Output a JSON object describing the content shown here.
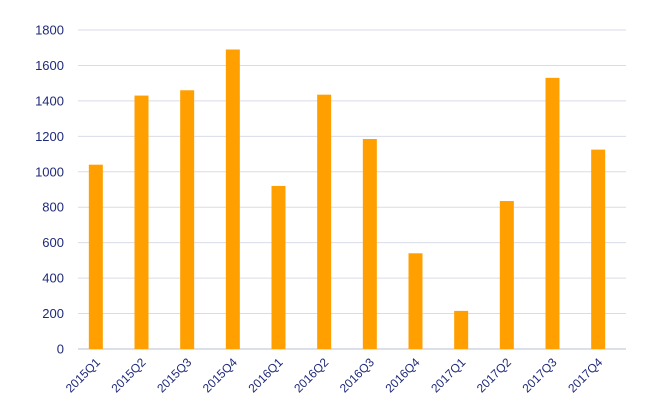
{
  "chart_data": {
    "type": "bar",
    "title": "",
    "xlabel": "",
    "ylabel": "",
    "categories": [
      "2015Q1",
      "2015Q2",
      "2015Q3",
      "2015Q4",
      "2016Q1",
      "2016Q2",
      "2016Q3",
      "2016Q4",
      "2017Q1",
      "2017Q2",
      "2017Q3",
      "2017Q4"
    ],
    "series": [
      {
        "values": [
          1040,
          1430,
          1460,
          1690,
          920,
          1435,
          1185,
          540,
          215,
          835,
          1530,
          1125
        ]
      }
    ],
    "ylim": [
      0,
      1800
    ],
    "yticks": [
      "0",
      "200",
      "400",
      "600",
      "800",
      "1000",
      "1200",
      "1400",
      "1600",
      "1800"
    ],
    "grid": true,
    "legend": "none",
    "colors": {
      "bar": "#ffa000",
      "grid": "#d9dbe8",
      "axis": "#c7cad9",
      "text": "#1f2a7a"
    }
  }
}
